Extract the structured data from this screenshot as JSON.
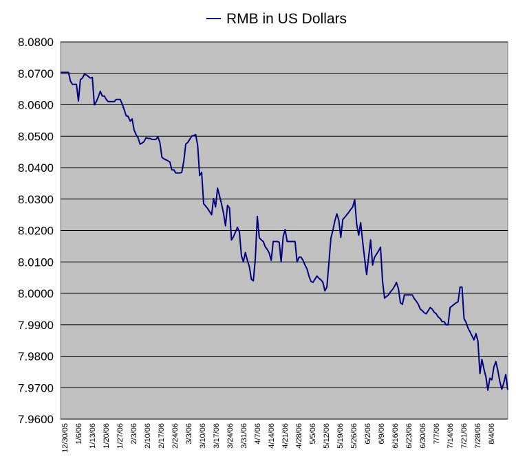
{
  "chart_data": {
    "type": "line",
    "title": "",
    "xlabel": "",
    "ylabel": "",
    "ylim": [
      7.96,
      8.08
    ],
    "y_ticks": [
      "8.0800",
      "8.0700",
      "8.0600",
      "8.0500",
      "8.0400",
      "8.0300",
      "8.0200",
      "8.0100",
      "8.0000",
      "7.9900",
      "7.9800",
      "7.9700",
      "7.9600"
    ],
    "x_tick_labels": [
      "12/30/05",
      "1/6/06",
      "1/13/06",
      "1/20/06",
      "1/27/06",
      "2/3/06",
      "2/10/06",
      "2/17/06",
      "2/24/06",
      "3/3/06",
      "3/10/06",
      "3/17/06",
      "3/24/06",
      "3/31/06",
      "4/7/06",
      "4/14/06",
      "4/21/06",
      "4/28/06",
      "5/5/06",
      "5/12/06",
      "5/19/06",
      "5/26/06",
      "6/2/06",
      "6/9/06",
      "6/16/06",
      "6/23/06",
      "6/30/06",
      "7/7/06",
      "7/14/06",
      "7/21/06",
      "7/28/06",
      "8/4/06"
    ],
    "grid": "horizontal",
    "legend_position": "top",
    "background_color": "#c0c0c0",
    "line_color": "#000080",
    "series": [
      {
        "name": "RMB in US Dollars",
        "values": [
          8.0703,
          8.0703,
          8.0703,
          8.0703,
          8.0703,
          8.0675,
          8.0665,
          8.0665,
          8.0665,
          8.0612,
          8.068,
          8.0685,
          8.0697,
          8.0695,
          8.069,
          8.0685,
          8.0687,
          8.06,
          8.061,
          8.0625,
          8.0643,
          8.0628,
          8.0628,
          8.0617,
          8.061,
          8.061,
          8.061,
          8.061,
          8.0617,
          8.0617,
          8.0617,
          8.0603,
          8.0585,
          8.0565,
          8.0563,
          8.0548,
          8.0555,
          8.052,
          8.0505,
          8.0495,
          8.0475,
          8.0478,
          8.0483,
          8.0495,
          8.0493,
          8.0493,
          8.049,
          8.049,
          8.049,
          8.0498,
          8.048,
          8.0433,
          8.0428,
          8.0425,
          8.0422,
          8.0418,
          8.0393,
          8.0393,
          8.0383,
          8.0383,
          8.0383,
          8.0385,
          8.042,
          8.0475,
          8.048,
          8.049,
          8.05,
          8.0502,
          8.0505,
          8.047,
          8.0375,
          8.0385,
          8.0285,
          8.0278,
          8.027,
          8.026,
          8.025,
          8.0302,
          8.0275,
          8.0335,
          8.031,
          8.0285,
          8.0255,
          8.0215,
          8.028,
          8.0272,
          8.017,
          8.018,
          8.0195,
          8.021,
          8.0195,
          8.012,
          8.01,
          8.013,
          8.0105,
          8.0085,
          8.0045,
          8.004,
          8.011,
          8.0245,
          8.0177,
          8.017,
          8.0165,
          8.0148,
          8.014,
          8.0128,
          8.0105,
          8.0165,
          8.0165,
          8.0165,
          8.0163,
          8.01,
          8.018,
          8.0203,
          8.0165,
          8.0165,
          8.0165,
          8.0165,
          8.0165,
          8.01,
          8.0115,
          8.0115,
          8.0105,
          8.009,
          8.0078,
          8.0055,
          8.0038,
          8.0035,
          8.0045,
          8.0055,
          8.0048,
          8.0043,
          8.0035,
          8.0008,
          8.002,
          8.0095,
          8.0175,
          8.02,
          8.023,
          8.0253,
          8.0233,
          8.0178,
          8.0235,
          8.0242,
          8.025,
          8.0258,
          8.0267,
          8.0275,
          8.0298,
          8.022,
          8.0185,
          8.0225,
          8.0165,
          8.011,
          8.006,
          8.0115,
          8.017,
          8.009,
          8.0115,
          8.0125,
          8.0135,
          8.0147,
          8.004,
          7.9985,
          7.999,
          7.9995,
          8.0005,
          8.0012,
          8.0022,
          8.0035,
          8.0015,
          7.997,
          7.9965,
          7.9995,
          7.9995,
          7.9995,
          7.9995,
          7.9995,
          7.9983,
          7.9975,
          7.9965,
          7.995,
          7.9945,
          7.9938,
          7.9935,
          7.9945,
          7.9955,
          7.995,
          7.994,
          7.9935,
          7.9925,
          7.992,
          7.991,
          7.991,
          7.99,
          7.99,
          7.9955,
          7.996,
          7.9965,
          7.997,
          7.9973,
          8.002,
          8.002,
          7.992,
          7.9908,
          7.989,
          7.9878,
          7.9865,
          7.9852,
          7.9872,
          7.9848,
          7.9745,
          7.979,
          7.976,
          7.9735,
          7.9692,
          7.973,
          7.9725,
          7.9765,
          7.9783,
          7.9755,
          7.972,
          7.9695,
          7.9715,
          7.9742,
          7.9693
        ]
      }
    ]
  }
}
